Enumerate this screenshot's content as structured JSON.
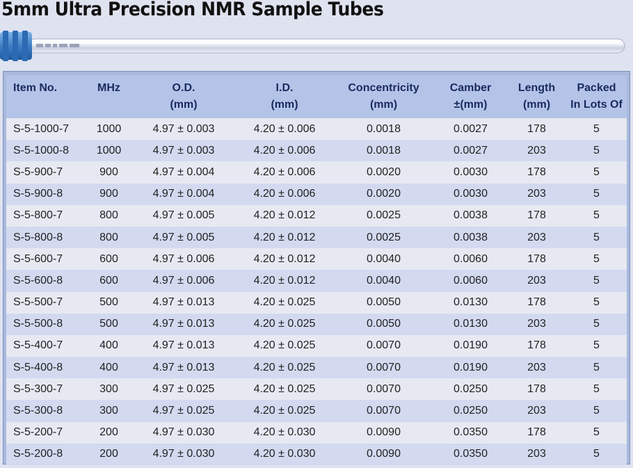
{
  "title": "5mm Ultra Precision NMR Sample Tubes",
  "colors": {
    "header_bg": "#b4c4e8",
    "row_light": "#e7e9f2",
    "row_dark": "#d3daf0",
    "cap_blue": "#3f7fc4"
  },
  "table": {
    "headers": [
      [
        "Item No.",
        ""
      ],
      [
        "MHz",
        ""
      ],
      [
        "O.D.",
        "(mm)"
      ],
      [
        "I.D.",
        "(mm)"
      ],
      [
        "Concentricity",
        "(mm)"
      ],
      [
        "Camber",
        "±(mm)"
      ],
      [
        "Length",
        "(mm)"
      ],
      [
        "Packed",
        "In Lots Of"
      ]
    ],
    "rows": [
      [
        "S-5-1000-7",
        "1000",
        "4.97 ± 0.003",
        "4.20 ± 0.006",
        "0.0018",
        "0.0027",
        "178",
        "5"
      ],
      [
        "S-5-1000-8",
        "1000",
        "4.97 ± 0.003",
        "4.20 ± 0.006",
        "0.0018",
        "0.0027",
        "203",
        "5"
      ],
      [
        "S-5-900-7",
        "900",
        "4.97 ± 0.004",
        "4.20 ± 0.006",
        "0.0020",
        "0.0030",
        "178",
        "5"
      ],
      [
        "S-5-900-8",
        "900",
        "4.97 ± 0.004",
        "4.20 ± 0.006",
        "0.0020",
        "0.0030",
        "203",
        "5"
      ],
      [
        "S-5-800-7",
        "800",
        "4.97 ± 0.005",
        "4.20 ± 0.012",
        "0.0025",
        "0.0038",
        "178",
        "5"
      ],
      [
        "S-5-800-8",
        "800",
        "4.97 ± 0.005",
        "4.20 ± 0.012",
        "0.0025",
        "0.0038",
        "203",
        "5"
      ],
      [
        "S-5-600-7",
        "600",
        "4.97 ± 0.006",
        "4.20 ± 0.012",
        "0.0040",
        "0.0060",
        "178",
        "5"
      ],
      [
        "S-5-600-8",
        "600",
        "4.97 ± 0.006",
        "4.20 ± 0.012",
        "0.0040",
        "0.0060",
        "203",
        "5"
      ],
      [
        "S-5-500-7",
        "500",
        "4.97 ± 0.013",
        "4.20 ± 0.025",
        "0.0050",
        "0.0130",
        "178",
        "5"
      ],
      [
        "S-5-500-8",
        "500",
        "4.97 ± 0.013",
        "4.20 ± 0.025",
        "0.0050",
        "0.0130",
        "203",
        "5"
      ],
      [
        "S-5-400-7",
        "400",
        "4.97 ± 0.013",
        "4.20 ± 0.025",
        "0.0070",
        "0.0190",
        "178",
        "5"
      ],
      [
        "S-5-400-8",
        "400",
        "4.97 ± 0.013",
        "4.20 ± 0.025",
        "0.0070",
        "0.0190",
        "203",
        "5"
      ],
      [
        "S-5-300-7",
        "300",
        "4.97 ± 0.025",
        "4.20 ± 0.025",
        "0.0070",
        "0.0250",
        "178",
        "5"
      ],
      [
        "S-5-300-8",
        "300",
        "4.97 ± 0.025",
        "4.20 ± 0.025",
        "0.0070",
        "0.0250",
        "203",
        "5"
      ],
      [
        "S-5-200-7",
        "200",
        "4.97 ± 0.030",
        "4.20 ± 0.030",
        "0.0090",
        "0.0350",
        "178",
        "5"
      ],
      [
        "S-5-200-8",
        "200",
        "4.97 ± 0.030",
        "4.20 ± 0.030",
        "0.0090",
        "0.0350",
        "203",
        "5"
      ]
    ]
  }
}
